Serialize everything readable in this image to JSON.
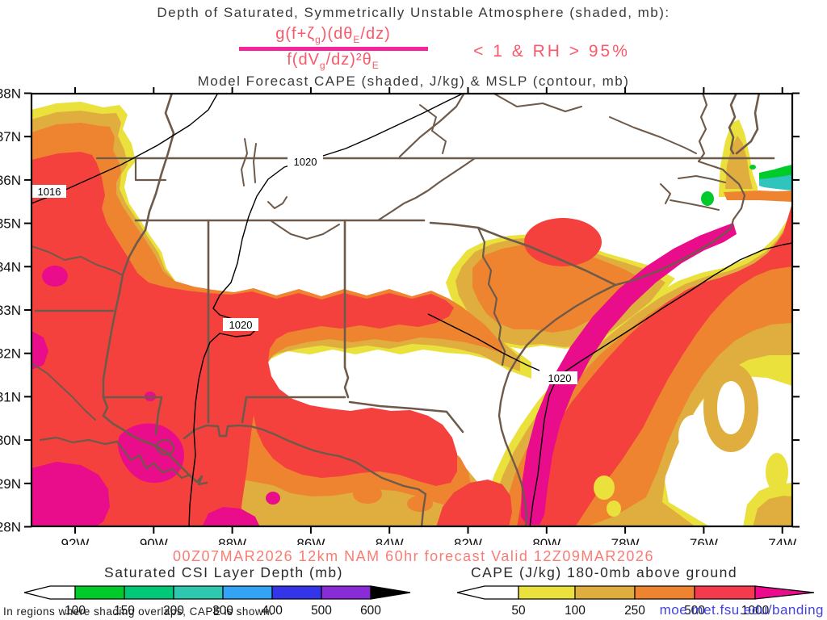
{
  "titles": {
    "line1": "Depth of Saturated, Symmetrically Unstable Atmosphere (shaded, mb):",
    "line3": "Model Forecast CAPE (shaded, J/kg) & MSLP (contour, mb)"
  },
  "formula": {
    "num_1": "g(f+ζ",
    "num_sub1": "g",
    "num_2": ")(dθ",
    "num_sub2": "E",
    "num_3": "/dz)",
    "den_1": "f(dV",
    "den_sub1": "g",
    "den_2": "/dz)²θ",
    "den_sub2": "E",
    "condition": "< 1 & RH > 95%",
    "text_color": "#f9596b",
    "bar_color": "#f5249b"
  },
  "map": {
    "lat_labels": [
      "38N",
      "37N",
      "36N",
      "35N",
      "34N",
      "33N",
      "32N",
      "31N",
      "30N",
      "29N",
      "28N"
    ],
    "lon_labels": [
      "92W",
      "90W",
      "88W",
      "86W",
      "84W",
      "82W",
      "80W",
      "78W",
      "76W",
      "74W"
    ],
    "contour_labels": [
      "1016",
      "1020",
      "1020",
      "1020"
    ],
    "shade_colors": {
      "yellow": "#eae13c",
      "gold": "#dfae3e",
      "orange": "#ef8430",
      "red": "#f4413e",
      "magenta": "#e90c8b",
      "green": "#00cb2a",
      "teal": "#2fc4be",
      "border_brown": "#6e5a4a"
    }
  },
  "footer": {
    "timestamp": "00Z07MAR2026 12km NAM 60hr forecast Valid 12Z09MAR2026",
    "note": "In regions where shading overlaps, CAPE is shown.",
    "link": "moe.met.fsu.edu/banding"
  },
  "colorbars": {
    "csi": {
      "title": "Saturated CSI Layer Depth (mb)",
      "tick_labels": [
        "100",
        "150",
        "200",
        "300",
        "400",
        "500",
        "600"
      ],
      "colors": [
        "#00cb2a",
        "#00c878",
        "#2fc8ae",
        "#33a3f5",
        "#3434e8",
        "#8a2bd8"
      ],
      "end_arrow_color": "#000000"
    },
    "cape": {
      "title": "CAPE (J/kg) 180-0mb above ground",
      "tick_labels": [
        "50",
        "100",
        "250",
        "500",
        "1000"
      ],
      "colors": [
        "#eae13c",
        "#dfae3e",
        "#ef8430",
        "#f43b4d"
      ],
      "end_arrow_color": "#ea0c8c"
    }
  },
  "chart_data": {
    "type": "heatmap",
    "title": "Depth of Saturated, Symmetrically Unstable Atmosphere (shaded, mb) / Model Forecast CAPE (shaded, J/kg) & MSLP (contour, mb)",
    "region": "Southeastern United States",
    "lat_range": [
      28,
      38
    ],
    "lon_range": [
      -93.1,
      -73.7
    ],
    "csi_depth_scale_mb": [
      100,
      150,
      200,
      300,
      400,
      500,
      600
    ],
    "cape_scale_jkg": [
      50,
      100,
      250,
      500,
      1000
    ],
    "mslp_contours_mb": [
      1016,
      1020
    ],
    "mslp_contour_label_positions": [
      {
        "value": 1016,
        "lat": 35.7,
        "lon": -92.7
      },
      {
        "value": 1020,
        "lat": 36.4,
        "lon": -86.1
      },
      {
        "value": 1020,
        "lat": 32.7,
        "lon": -87.8
      },
      {
        "value": 1020,
        "lat": 31.5,
        "lon": -79.6
      }
    ],
    "shaded_features": [
      {
        "feature": "Large CAPE maximum 500-1000+ J/kg with embedded >1000 cores",
        "location": "Arkansas/Louisiana/Mississippi, west portion of map"
      },
      {
        "feature": "East-west CAPE band 250-500 J/kg along ~33N",
        "location": "central Mississippi/Alabama"
      },
      {
        "feature": "Diagonal CAPE band with >1000 J/kg core",
        "location": "Atlantic offshore, SW-NE from Florida coast to Carolinas"
      },
      {
        "feature": "CAPE maximum 500 J/kg",
        "location": "central North Carolina / South Carolina"
      },
      {
        "feature": "Small saturated-CSI layer depth 100-300 mb patches",
        "location": "offshore Virginia/NC near 36N, right edge"
      }
    ]
  }
}
